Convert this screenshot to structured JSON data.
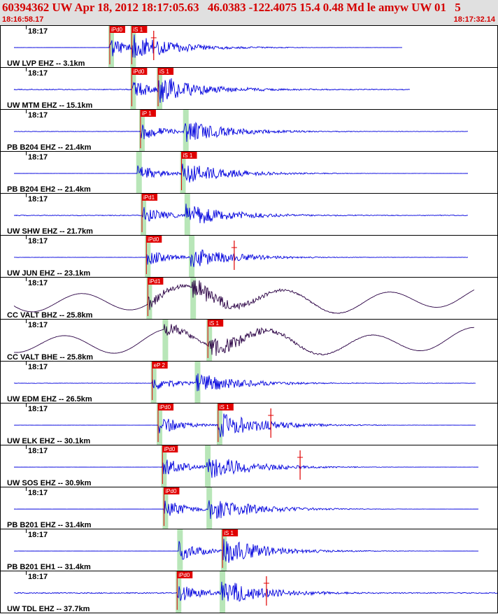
{
  "header": {
    "title": "60394362 UW Apr 18, 2012 18:17:05.63   46.0383 -122.4075 15.4 0.48 Md le amyw UW 01   5",
    "time_start": "18:16:58.17",
    "time_end": "18:17:32.14"
  },
  "colors": {
    "header_bg": "#e0e0e0",
    "header_text": "#d40000",
    "trace_ehz": "#0000dd",
    "trace_bb": "#2a0044",
    "pick_box": "#e00000",
    "pick_window": "#b8e6b8",
    "frame": "#000000"
  },
  "view": {
    "t_start_s": 0,
    "t_end_s": 33.97
  },
  "traces": [
    {
      "time_label": "18:17",
      "station": "UW LVP EHZ -- 3.1km",
      "channel": "EHZ",
      "p_pick": {
        "label": "iPd0",
        "time_s": 7.5
      },
      "s_pick": {
        "label": "iS 1",
        "time_s": 9.0
      },
      "end_mark_s": 10.5,
      "amp": 1.0,
      "noise": 0.05,
      "data_end_s": 27.5
    },
    {
      "time_label": "18:17",
      "station": "UW MTM EHZ -- 15.1km",
      "channel": "EHZ",
      "p_pick": {
        "label": "iPd0",
        "time_s": 9.0
      },
      "s_pick": {
        "label": "iS 1",
        "time_s": 10.8
      },
      "end_mark_s": null,
      "amp": 1.0,
      "noise": 0.3,
      "data_end_s": 28.0
    },
    {
      "time_label": "18:17",
      "station": "PB B204 EHZ -- 21.4km",
      "channel": "EHZ",
      "p_pick": {
        "label": "iP 1",
        "time_s": 9.6
      },
      "s_pick": null,
      "end_mark_s": null,
      "amp": 0.9,
      "noise": 0.15,
      "data_end_s": 32.0
    },
    {
      "time_label": "18:17",
      "station": "PB B204 EH2 -- 21.4km",
      "channel": "EH2",
      "p_pick": null,
      "s_pick": {
        "label": "iS 1",
        "time_s": 12.4
      },
      "end_mark_s": null,
      "amp": 0.9,
      "noise": 0.05,
      "data_end_s": 32.0
    },
    {
      "time_label": "18:17",
      "station": "UW SHW EHZ -- 21.7km",
      "channel": "EHZ",
      "p_pick": {
        "label": "iPd1",
        "time_s": 9.7
      },
      "s_pick": null,
      "end_mark_s": null,
      "amp": 0.9,
      "noise": 0.25,
      "data_end_s": 32.0
    },
    {
      "time_label": "18:17",
      "station": "UW JUN EHZ -- 23.1km",
      "channel": "EHZ",
      "p_pick": {
        "label": "iPd0",
        "time_s": 10.0
      },
      "s_pick": null,
      "end_mark_s": 16.0,
      "amp": 0.8,
      "noise": 0.1,
      "data_end_s": 32.0
    },
    {
      "time_label": "18:17",
      "station": "CC VALT BHZ -- 25.8km",
      "channel": "BHZ",
      "p_pick": {
        "label": "iPd1",
        "time_s": 10.1
      },
      "s_pick": null,
      "end_mark_s": null,
      "amp": 0.8,
      "noise": 0.05,
      "data_end_s": 32.4
    },
    {
      "time_label": "18:17",
      "station": "CC VALT BHE -- 25.8km",
      "channel": "BHE",
      "p_pick": null,
      "s_pick": {
        "label": "iS 1",
        "time_s": 14.2
      },
      "end_mark_s": null,
      "amp": 0.8,
      "noise": 0.05,
      "data_end_s": 32.4
    },
    {
      "time_label": "18:17",
      "station": "UW EDM EHZ -- 26.5km",
      "channel": "EHZ",
      "p_pick": {
        "label": "eP 2",
        "time_s": 10.4
      },
      "s_pick": null,
      "end_mark_s": null,
      "amp": 0.8,
      "noise": 0.15,
      "data_end_s": 32.5
    },
    {
      "time_label": "18:17",
      "station": "UW ELK EHZ -- 30.1km",
      "channel": "EHZ",
      "p_pick": {
        "label": "iPd0",
        "time_s": 10.8
      },
      "s_pick": {
        "label": "iS 1",
        "time_s": 14.9
      },
      "end_mark_s": 18.5,
      "amp": 1.0,
      "noise": 0.05,
      "data_end_s": 32.5
    },
    {
      "time_label": "18:17",
      "station": "UW SOS EHZ -- 30.9km",
      "channel": "EHZ",
      "p_pick": {
        "label": "iPd0",
        "time_s": 11.1
      },
      "s_pick": null,
      "end_mark_s": 20.5,
      "amp": 1.0,
      "noise": 0.05,
      "data_end_s": 32.7
    },
    {
      "time_label": "18:17",
      "station": "PB B201 EHZ -- 31.4km",
      "channel": "EHZ",
      "p_pick": {
        "label": "iPd0",
        "time_s": 11.2
      },
      "s_pick": null,
      "end_mark_s": null,
      "amp": 1.0,
      "noise": 0.03,
      "data_end_s": 32.7
    },
    {
      "time_label": "18:17",
      "station": "PB B201 EH1 -- 31.4km",
      "channel": "EH1",
      "p_pick": null,
      "s_pick": {
        "label": "iS 1",
        "time_s": 15.2
      },
      "end_mark_s": null,
      "amp": 1.0,
      "noise": 0.05,
      "data_end_s": 32.7
    },
    {
      "time_label": "18:17",
      "station": "UW TDL EHZ -- 37.7km",
      "channel": "EHZ",
      "p_pick": {
        "label": "iPd0",
        "time_s": 12.1
      },
      "s_pick": null,
      "end_mark_s": 18.2,
      "amp": 1.0,
      "noise": 0.35,
      "data_end_s": 33.97
    }
  ]
}
